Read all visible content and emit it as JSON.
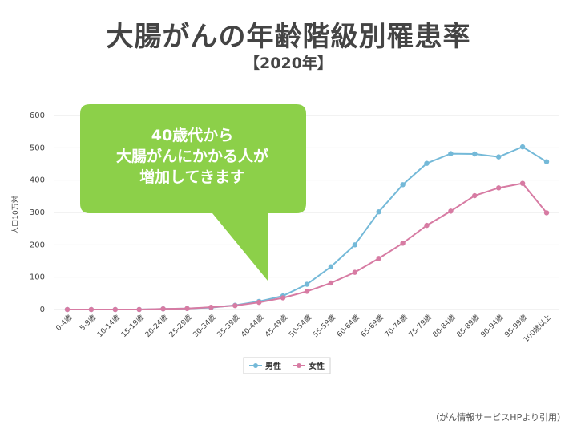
{
  "title": "大腸がんの年齢階級別罹患率",
  "subtitle": "【2020年】",
  "source": "（がん情報サービスHPより引用）",
  "callout": {
    "lines": [
      "40歳代から",
      "大腸がんにかかる人が",
      "増加してきます"
    ],
    "color": "#8cd049"
  },
  "chart_data": {
    "type": "line",
    "ylabel": "人口10万対",
    "ylim": [
      0,
      600
    ],
    "yticks": [
      0,
      100,
      200,
      300,
      400,
      500,
      600
    ],
    "categories": [
      "0-4歳",
      "5-9歳",
      "10-14歳",
      "15-19歳",
      "20-24歳",
      "25-29歳",
      "30-34歳",
      "35-39歳",
      "40-44歳",
      "45-49歳",
      "50-54歳",
      "55-59歳",
      "60-64歳",
      "65-69歳",
      "70-74歳",
      "75-79歳",
      "80-84歳",
      "85-89歳",
      "90-94歳",
      "95-99歳",
      "100歳以上"
    ],
    "series": [
      {
        "name": "男性",
        "color": "#74b9d8",
        "values": [
          0,
          0,
          0,
          0,
          2,
          3,
          6,
          13,
          25,
          42,
          78,
          132,
          200,
          302,
          386,
          452,
          482,
          481,
          472,
          503,
          457
        ]
      },
      {
        "name": "女性",
        "color": "#d77ba3",
        "values": [
          0,
          0,
          0,
          0,
          2,
          3,
          7,
          12,
          22,
          36,
          56,
          82,
          115,
          158,
          205,
          260,
          304,
          352,
          376,
          390,
          299
        ]
      }
    ],
    "legend_position": "bottom",
    "grid": true
  }
}
